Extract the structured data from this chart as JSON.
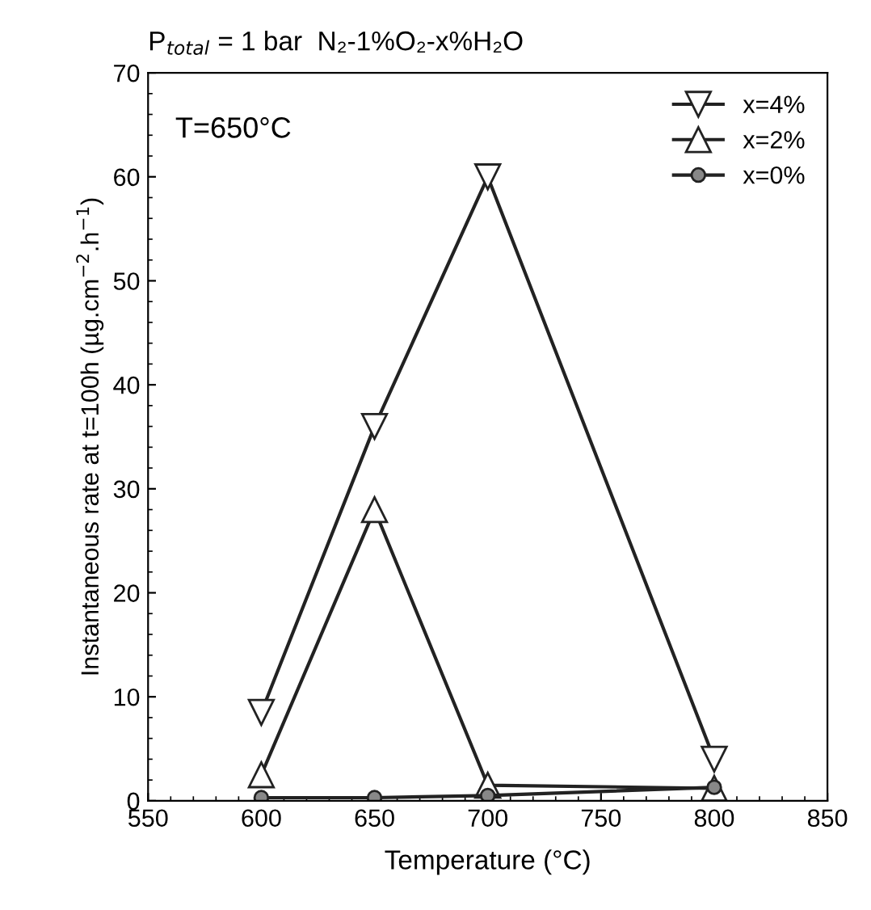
{
  "chart_data": {
    "type": "line",
    "title": "P$_{total}$ = 1 bar  N₂-1%O₂-x%H₂O",
    "xlabel": "Temperature (°C)",
    "ylabel": "Instantaneous rate at t=100h (µg.cm$^{−2}$.h$^{−1}$)",
    "annotations": [
      "T=650°C"
    ],
    "x": [
      600,
      650,
      700,
      800
    ],
    "series": [
      {
        "name": "x=4%",
        "color": "#222222",
        "marker": "triangle_down",
        "values": [
          8.5,
          36,
          60,
          4
        ]
      },
      {
        "name": "x=2%",
        "color": "#222222",
        "marker": "triangle",
        "values": [
          2.5,
          28,
          1.5,
          1.2
        ]
      },
      {
        "name": "x=0%",
        "color": "#222222",
        "marker": "circle",
        "values": [
          0.3,
          0.3,
          0.5,
          1.3
        ]
      }
    ],
    "xlim": [
      550,
      850
    ],
    "xticks": [
      550,
      600,
      650,
      700,
      750,
      800,
      850
    ],
    "ylim": [
      0,
      70
    ],
    "yticks": [
      0,
      10,
      20,
      30,
      40,
      50,
      60,
      70
    ],
    "grid": false,
    "legend": "top right",
    "line_style": "solid"
  }
}
